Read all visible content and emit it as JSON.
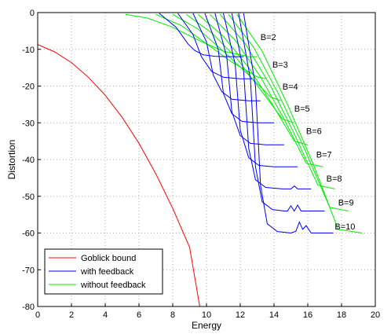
{
  "chart_data": {
    "type": "line",
    "title": "",
    "xlabel": "Energy",
    "ylabel": "Distortion",
    "xlim": [
      0,
      20
    ],
    "ylim": [
      -80,
      0
    ],
    "xticks": [
      "0",
      "2",
      "4",
      "6",
      "8",
      "10",
      "12",
      "14",
      "16",
      "18",
      "20"
    ],
    "yticks": [
      "0",
      "-10",
      "-20",
      "-30",
      "-40",
      "-50",
      "-60",
      "-70",
      "-80"
    ],
    "grid": true,
    "legend": {
      "position": "bottom-left",
      "entries": [
        {
          "label": "Goblick bound",
          "color": "#ff0000"
        },
        {
          "label": "with feedback",
          "color": "#0000ff"
        },
        {
          "label": "without feedback",
          "color": "#00ee00"
        }
      ]
    },
    "colors": {
      "goblick": "#ff0000",
      "feedback": "#0000ff",
      "nofeedback": "#00ee00"
    },
    "goblick_bound": {
      "x": [
        0,
        1,
        2,
        3,
        4,
        5,
        6,
        7,
        8,
        9,
        9.6
      ],
      "y": [
        -8.7,
        -10.7,
        -13.6,
        -17.6,
        -22.5,
        -28.5,
        -35.6,
        -43.9,
        -53.3,
        -63.9,
        -80
      ]
    },
    "series": [
      {
        "B": 2,
        "label": "B=2",
        "label_pos": [
          13.2,
          -7.5
        ],
        "feedback": {
          "x": [
            7.2,
            8.2,
            8.9,
            9.3,
            9.8,
            10.5,
            11.2,
            11.8,
            12.2
          ],
          "y": [
            -0.2,
            -4,
            -8.5,
            -10.3,
            -11.5,
            -11.9,
            -12.0,
            -12.0,
            -12.0
          ]
        },
        "no_feedback": {
          "x": [
            5.2,
            6.5,
            8.0,
            9.5,
            11.0,
            12.5,
            13.0
          ],
          "y": [
            -0.5,
            -1.5,
            -4,
            -7.5,
            -10.5,
            -12.0,
            -12.0
          ]
        }
      },
      {
        "B": 3,
        "label": "B=3",
        "label_pos": [
          13.9,
          -15.0
        ],
        "feedback": {
          "x": [
            8.3,
            9.2,
            9.7,
            10.3,
            11.0,
            12.0,
            12.7
          ],
          "y": [
            -0.2,
            -6,
            -12.0,
            -16.0,
            -17.6,
            -18.0,
            -18.0
          ]
        },
        "no_feedback": {
          "x": [
            7.0,
            8.5,
            10.0,
            11.5,
            13.0,
            13.5
          ],
          "y": [
            -0.5,
            -3.5,
            -8.5,
            -13.5,
            -17.5,
            -18.0
          ]
        }
      },
      {
        "B": 4,
        "label": "B=4",
        "label_pos": [
          14.5,
          -21.0
        ],
        "feedback": {
          "x": [
            9.2,
            10.0,
            10.4,
            10.9,
            11.5,
            12.5,
            13.2
          ],
          "y": [
            -0.2,
            -8,
            -17.0,
            -21.5,
            -23.6,
            -24.0,
            -24.0
          ]
        },
        "no_feedback": {
          "x": [
            8.0,
            9.5,
            11.0,
            12.5,
            13.8,
            14.4
          ],
          "y": [
            -0.5,
            -4.5,
            -10.5,
            -17.0,
            -23.0,
            -24.0
          ]
        }
      },
      {
        "B": 5,
        "label": "B=5",
        "label_pos": [
          15.2,
          -27.0
        ],
        "feedback": {
          "x": [
            9.9,
            10.7,
            11.0,
            11.5,
            12.1,
            13.0,
            14.0
          ],
          "y": [
            -0.2,
            -10,
            -22.0,
            -27.5,
            -29.6,
            -30.0,
            -30.0
          ]
        },
        "no_feedback": {
          "x": [
            8.8,
            10.3,
            11.8,
            13.2,
            14.5,
            15.2
          ],
          "y": [
            -0.5,
            -5.5,
            -12.5,
            -21.0,
            -29.0,
            -30.0
          ]
        }
      },
      {
        "B": 6,
        "label": "B=6",
        "label_pos": [
          15.9,
          -33.0
        ],
        "feedback": {
          "x": [
            10.5,
            11.2,
            11.5,
            12.0,
            12.6,
            13.5,
            14.6
          ],
          "y": [
            -0.2,
            -12,
            -27.0,
            -33.5,
            -35.6,
            -36.0,
            -36.0
          ]
        },
        "no_feedback": {
          "x": [
            9.5,
            11.0,
            12.5,
            13.9,
            15.2,
            16.0
          ],
          "y": [
            -0.5,
            -6.5,
            -15.0,
            -25.0,
            -35.0,
            -36.0
          ]
        }
      },
      {
        "B": 7,
        "label": "B=7",
        "label_pos": [
          16.5,
          -39.5
        ],
        "feedback": {
          "x": [
            11.0,
            11.7,
            12.0,
            12.5,
            13.1,
            14.0,
            15.4
          ],
          "y": [
            -0.2,
            -14,
            -32.0,
            -39.5,
            -41.6,
            -42.0,
            -42.0
          ]
        },
        "no_feedback": {
          "x": [
            10.2,
            11.7,
            13.2,
            14.6,
            15.9,
            16.9
          ],
          "y": [
            -0.5,
            -7.5,
            -17.5,
            -29.0,
            -41.0,
            -42.0
          ]
        }
      },
      {
        "B": 8,
        "label": "B=8",
        "label_pos": [
          17.1,
          -46.0
        ],
        "feedback": {
          "x": [
            11.5,
            12.2,
            12.5,
            12.9,
            13.5,
            14.5,
            15.0,
            15.2,
            15.4,
            15.6,
            16.2
          ],
          "y": [
            -0.2,
            -16,
            -37.0,
            -45.5,
            -47.6,
            -48.0,
            -48.0,
            -47.2,
            -48.0,
            -48.0,
            -48.0
          ]
        },
        "no_feedback": {
          "x": [
            10.8,
            12.3,
            13.8,
            15.2,
            16.6,
            17.6
          ],
          "y": [
            -0.5,
            -8.5,
            -20.0,
            -33.0,
            -47.0,
            -48.0
          ]
        }
      },
      {
        "B": 9,
        "label": "B=9",
        "label_pos": [
          17.8,
          -52.5
        ],
        "feedback": {
          "x": [
            11.9,
            12.6,
            12.9,
            13.3,
            13.9,
            14.6,
            14.8,
            15.0,
            15.2,
            15.4,
            15.6,
            16.0,
            17.0
          ],
          "y": [
            -0.2,
            -18,
            -42.0,
            -51.5,
            -53.6,
            -54.0,
            -54.0,
            -52.6,
            -54.0,
            -52.4,
            -54.0,
            -54.0,
            -54.0
          ]
        },
        "no_feedback": {
          "x": [
            11.3,
            12.8,
            14.3,
            15.8,
            17.3,
            18.4
          ],
          "y": [
            -0.5,
            -9.5,
            -22.5,
            -37.0,
            -53.0,
            -54.0
          ]
        }
      },
      {
        "B": 10,
        "label": "B=10",
        "label_pos": [
          17.6,
          -59.0
        ],
        "feedback": {
          "x": [
            12.2,
            12.9,
            13.2,
            13.6,
            14.2,
            15.0,
            15.3,
            15.5,
            15.7,
            15.9,
            16.2,
            17.5
          ],
          "y": [
            -0.2,
            -20,
            -47.0,
            -57.5,
            -59.6,
            -60.0,
            -59.5,
            -57.0,
            -59.0,
            -58.0,
            -60.0,
            -60.0
          ]
        },
        "no_feedback": {
          "x": [
            11.8,
            13.3,
            14.8,
            16.3,
            17.8,
            19.2
          ],
          "y": [
            -0.5,
            -10.5,
            -25.0,
            -41.0,
            -59.0,
            -60.0
          ]
        }
      }
    ]
  }
}
